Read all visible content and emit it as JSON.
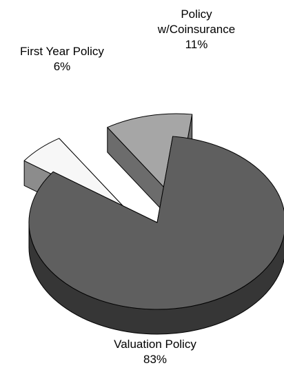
{
  "chart_data": {
    "type": "pie",
    "style": "3d-exploded",
    "slices": [
      {
        "label_lines": [
          "Valuation Policy"
        ],
        "percent_text": "83%",
        "value": 83,
        "color": "#5f5f5f",
        "side_color": "#363636"
      },
      {
        "label_lines": [
          "First Year Policy"
        ],
        "percent_text": "6%",
        "value": 6,
        "color": "#f7f7f7",
        "side_color": "#8c8c8c"
      },
      {
        "label_lines": [
          "Policy",
          "w/Coinsurance"
        ],
        "percent_text": "11%",
        "value": 11,
        "color": "#a6a6a6",
        "side_color": "#6c6c6c"
      }
    ]
  }
}
